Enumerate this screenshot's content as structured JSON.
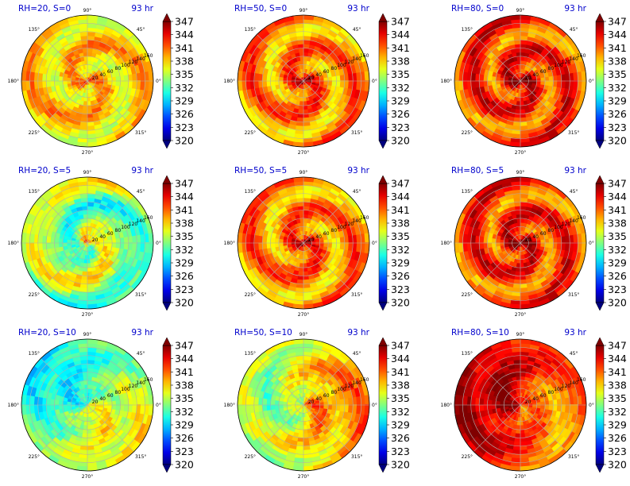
{
  "figure": {
    "panels": [
      {
        "label": "RH=20, S=0",
        "time": "93 hr",
        "style": "dry"
      },
      {
        "label": "RH=50, S=0",
        "time": "93 hr",
        "style": "moist"
      },
      {
        "label": "RH=80, S=0",
        "time": "93 hr",
        "style": "wet"
      },
      {
        "label": "RH=20, S=5",
        "time": "93 hr",
        "style": "dry-shear"
      },
      {
        "label": "RH=50, S=5",
        "time": "93 hr",
        "style": "moist"
      },
      {
        "label": "RH=80, S=5",
        "time": "93 hr",
        "style": "wet"
      },
      {
        "label": "RH=20, S=10",
        "time": "93 hr",
        "style": "dry-shear-strong"
      },
      {
        "label": "RH=50, S=10",
        "time": "93 hr",
        "style": "moist-shear"
      },
      {
        "label": "RH=80, S=10",
        "time": "93 hr",
        "style": "wet-shear"
      }
    ],
    "angle_labels": [
      "90°",
      "45°",
      "0°",
      "315°",
      "270°",
      "225°",
      "180°",
      "135°"
    ],
    "radial_labels": [
      "20",
      "40",
      "60",
      "80",
      "100",
      "120",
      "140",
      "160"
    ],
    "colorbar_ticks": [
      "347",
      "344",
      "341",
      "338",
      "335",
      "332",
      "329",
      "326",
      "323",
      "320"
    ],
    "title_color": "#0000cc",
    "colormap": "jet"
  },
  "chart_data": {
    "type": "heatmap",
    "projection": "polar",
    "grid": true,
    "theta_ticks_deg": [
      0,
      45,
      90,
      135,
      180,
      225,
      270,
      315
    ],
    "r_ticks": [
      20,
      40,
      60,
      80,
      100,
      120,
      140,
      160
    ],
    "colorbar": {
      "min": 320,
      "max": 347,
      "ticks": [
        320,
        323,
        326,
        329,
        332,
        335,
        338,
        341,
        344,
        347
      ],
      "extend": "both"
    },
    "panels": [
      {
        "title": "RH=20, S=0",
        "time": "93 hr",
        "rh": 20,
        "shear": 0
      },
      {
        "title": "RH=50, S=0",
        "time": "93 hr",
        "rh": 50,
        "shear": 0
      },
      {
        "title": "RH=80, S=0",
        "time": "93 hr",
        "rh": 80,
        "shear": 0
      },
      {
        "title": "RH=20, S=5",
        "time": "93 hr",
        "rh": 20,
        "shear": 5
      },
      {
        "title": "RH=50, S=5",
        "time": "93 hr",
        "rh": 50,
        "shear": 5
      },
      {
        "title": "RH=80, S=5",
        "time": "93 hr",
        "rh": 80,
        "shear": 5
      },
      {
        "title": "RH=20, S=10",
        "time": "93 hr",
        "rh": 20,
        "shear": 10
      },
      {
        "title": "RH=50, S=10",
        "time": "93 hr",
        "rh": 50,
        "shear": 10
      },
      {
        "title": "RH=80, S=10",
        "time": "93 hr",
        "rh": 80,
        "shear": 10
      }
    ]
  }
}
